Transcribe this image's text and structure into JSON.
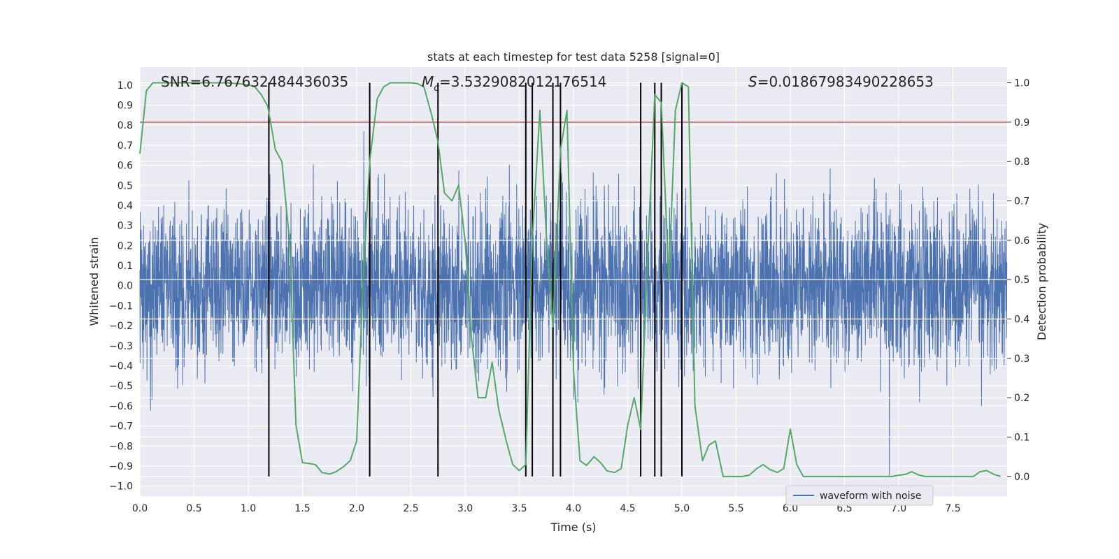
{
  "chart_data": {
    "type": "line",
    "title": "stats at each timestep for test data 5258 [signal=0]",
    "xlabel": "Time (s)",
    "ylabel": "Whitened strain",
    "y2label": "Detection probability",
    "xlim": [
      0.0,
      8.0
    ],
    "ylim": [
      -1.05,
      1.09
    ],
    "y2lim": [
      -0.05,
      1.04
    ],
    "x_ticks": [
      "0.0",
      "0.5",
      "1.0",
      "1.5",
      "2.0",
      "2.5",
      "3.0",
      "3.5",
      "4.0",
      "4.5",
      "5.0",
      "5.5",
      "6.0",
      "6.5",
      "7.0",
      "7.5"
    ],
    "y_ticks": [
      "1.0",
      "0.9",
      "0.8",
      "0.7",
      "0.6",
      "0.5",
      "0.4",
      "0.3",
      "0.2",
      "0.1",
      "0.0",
      "−0.1",
      "−0.2",
      "−0.3",
      "−0.4",
      "−0.5",
      "−0.6",
      "−0.7",
      "−0.8",
      "−0.9",
      "−1.0"
    ],
    "y2_ticks": [
      "1.0",
      "0.9",
      "0.8",
      "0.7",
      "0.6",
      "0.5",
      "0.4",
      "0.3",
      "0.2",
      "0.1",
      "0.0"
    ],
    "grid": true,
    "legend_placement": "lower-center",
    "annotations": {
      "snr": "SNR=6.767632484436035",
      "mc_symbol": "M",
      "mc_sub": "c",
      "mc_value": "=3.5329082012176514",
      "s_symbol": "S",
      "s_value": "=0.01867983490228653"
    },
    "series": [
      {
        "name": "waveform with noise",
        "color": "#4c72b0",
        "description_values": "dense noise, core band ±0.36, peaks up to ±0.9"
      },
      {
        "color": "#55a868",
        "axis": "right",
        "x": [
          0.0,
          0.06,
          0.12,
          0.2,
          0.3,
          0.4,
          0.5,
          0.6,
          0.7,
          0.8,
          0.9,
          1.0,
          1.06,
          1.12,
          1.18,
          1.25,
          1.31,
          1.38,
          1.44,
          1.5,
          1.56,
          1.62,
          1.68,
          1.75,
          1.81,
          1.88,
          1.94,
          2.0,
          2.06,
          2.12,
          2.19,
          2.25,
          2.31,
          2.38,
          2.44,
          2.5,
          2.56,
          2.62,
          2.69,
          2.75,
          2.81,
          2.88,
          2.94,
          3.0,
          3.06,
          3.12,
          3.19,
          3.25,
          3.31,
          3.38,
          3.44,
          3.5,
          3.56,
          3.62,
          3.69,
          3.75,
          3.81,
          3.88,
          3.94,
          4.0,
          4.06,
          4.12,
          4.19,
          4.25,
          4.31,
          4.38,
          4.44,
          4.5,
          4.56,
          4.62,
          4.69,
          4.75,
          4.81,
          4.88,
          4.94,
          5.0,
          5.06,
          5.12,
          5.19,
          5.25,
          5.31,
          5.38,
          5.44,
          5.5,
          5.56,
          5.62,
          5.69,
          5.75,
          5.81,
          5.88,
          5.94,
          6.0,
          6.06,
          6.12,
          6.19,
          6.25,
          6.31,
          6.38,
          6.44,
          6.5,
          6.56,
          6.62,
          6.69,
          6.75,
          6.81,
          6.88,
          6.94,
          7.0,
          7.06,
          7.12,
          7.19,
          7.25,
          7.31,
          7.38,
          7.44,
          7.5,
          7.56,
          7.62,
          7.69,
          7.75,
          7.81,
          7.88,
          7.94
        ],
        "y": [
          0.82,
          0.98,
          1.0,
          1.0,
          1.0,
          1.0,
          1.0,
          1.0,
          1.0,
          1.0,
          0.998,
          0.995,
          0.99,
          0.97,
          0.94,
          0.83,
          0.8,
          0.6,
          0.13,
          0.035,
          0.033,
          0.03,
          0.01,
          0.006,
          0.012,
          0.025,
          0.04,
          0.09,
          0.5,
          0.8,
          0.96,
          0.99,
          1.0,
          1.0,
          1.0,
          1.0,
          0.998,
          0.99,
          0.92,
          0.85,
          0.72,
          0.7,
          0.74,
          0.6,
          0.35,
          0.2,
          0.2,
          0.29,
          0.17,
          0.09,
          0.03,
          0.015,
          0.03,
          0.6,
          0.93,
          0.61,
          0.38,
          0.83,
          0.93,
          0.27,
          0.04,
          0.028,
          0.05,
          0.035,
          0.014,
          0.01,
          0.02,
          0.13,
          0.2,
          0.12,
          0.6,
          0.97,
          0.95,
          0.5,
          0.93,
          1.0,
          0.99,
          0.18,
          0.04,
          0.08,
          0.09,
          0.0,
          0.0,
          0.0,
          0.0,
          0.003,
          0.02,
          0.03,
          0.018,
          0.01,
          0.02,
          0.12,
          0.03,
          0.0,
          0.0,
          0.0,
          0.0,
          0.0,
          0.0,
          0.0,
          0.0,
          0.0,
          0.0,
          0.0,
          0.0,
          0.0,
          0.0,
          0.003,
          0.005,
          0.012,
          0.003,
          0.0,
          0.0,
          0.0,
          0.0,
          0.0,
          0.0,
          0.0,
          0.0,
          0.012,
          0.015,
          0.005,
          0.0
        ]
      }
    ],
    "thresholds": [
      {
        "axis": "right",
        "value": 0.9,
        "color": "#c44e52"
      }
    ],
    "vertical_lines": {
      "color": "#000000",
      "x": [
        1.19,
        2.12,
        2.75,
        3.56,
        3.62,
        3.81,
        3.88,
        4.62,
        4.75,
        4.81,
        5.0
      ],
      "y2_range": [
        0.0,
        1.0
      ]
    }
  }
}
